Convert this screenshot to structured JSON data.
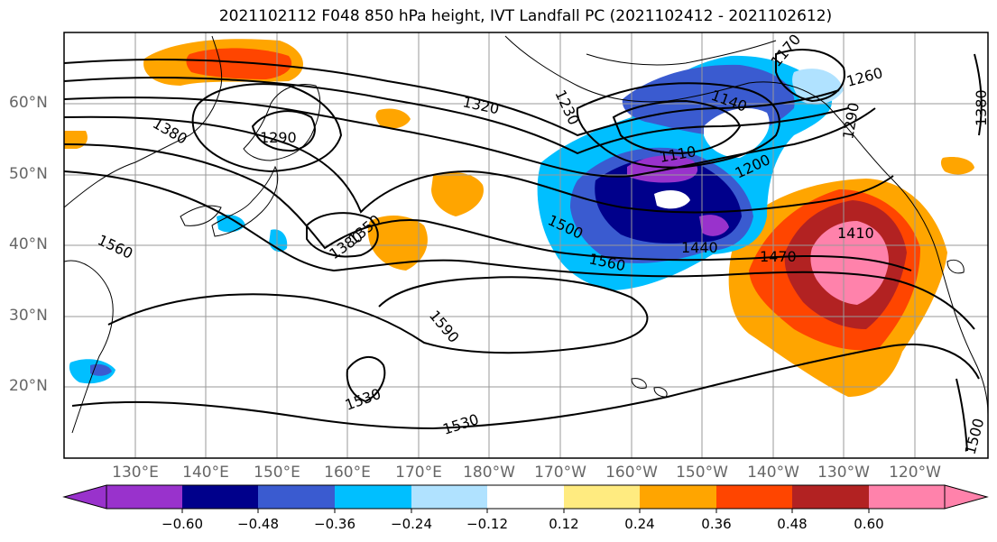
{
  "title": "2021102112 F048 850 hPa height, IVT Landfall PC (2021102412 - 2021102612)",
  "latitude_labels": [
    "60°N",
    "50°N",
    "40°N",
    "30°N",
    "20°N"
  ],
  "longitude_labels": [
    "130°E",
    "140°E",
    "150°E",
    "160°E",
    "170°E",
    "180°W",
    "170°W",
    "160°W",
    "150°W",
    "140°W",
    "130°W",
    "120°W"
  ],
  "contour_labels": [
    "1320",
    "1290",
    "1380",
    "1230",
    "1140",
    "1260",
    "1290",
    "1380",
    "1110",
    "1200",
    "1560",
    "1350",
    "1380",
    "1500",
    "1560",
    "1440",
    "1470",
    "1410",
    "1590",
    "1530",
    "1530",
    "1500",
    "1170"
  ],
  "colorbar": {
    "ticks": [
      "−0.60",
      "−0.48",
      "−0.36",
      "−0.24",
      "−0.12",
      "0.12",
      "0.24",
      "0.36",
      "0.48",
      "0.60"
    ],
    "colors": [
      "#9932cc",
      "#00008b",
      "#3a5bd0",
      "#00bfff",
      "#b0e2ff",
      "#ffffff",
      "#ffeb80",
      "#ffa500",
      "#ff4500",
      "#b22222",
      "#ff82ab"
    ]
  }
}
